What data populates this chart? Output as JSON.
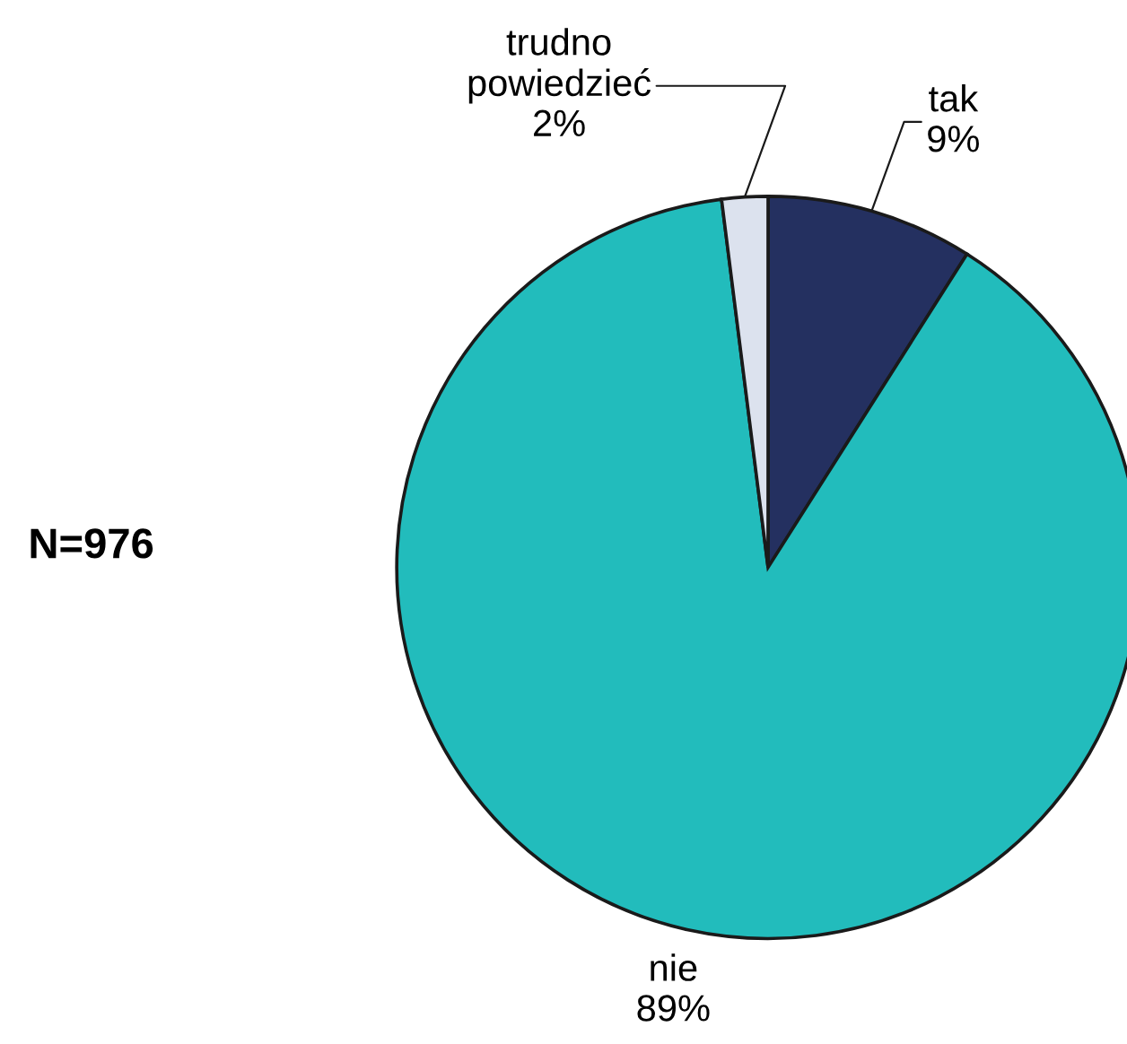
{
  "chart_data": {
    "type": "pie",
    "categories": [
      "tak",
      "nie",
      "trudno\npowiedzieć"
    ],
    "values": [
      9,
      89,
      2
    ],
    "value_labels": [
      "9%",
      "89%",
      "2%"
    ],
    "colors": [
      "#243060",
      "#22bcbc",
      "#dce2ee"
    ],
    "annotations": [
      "N=976"
    ]
  }
}
